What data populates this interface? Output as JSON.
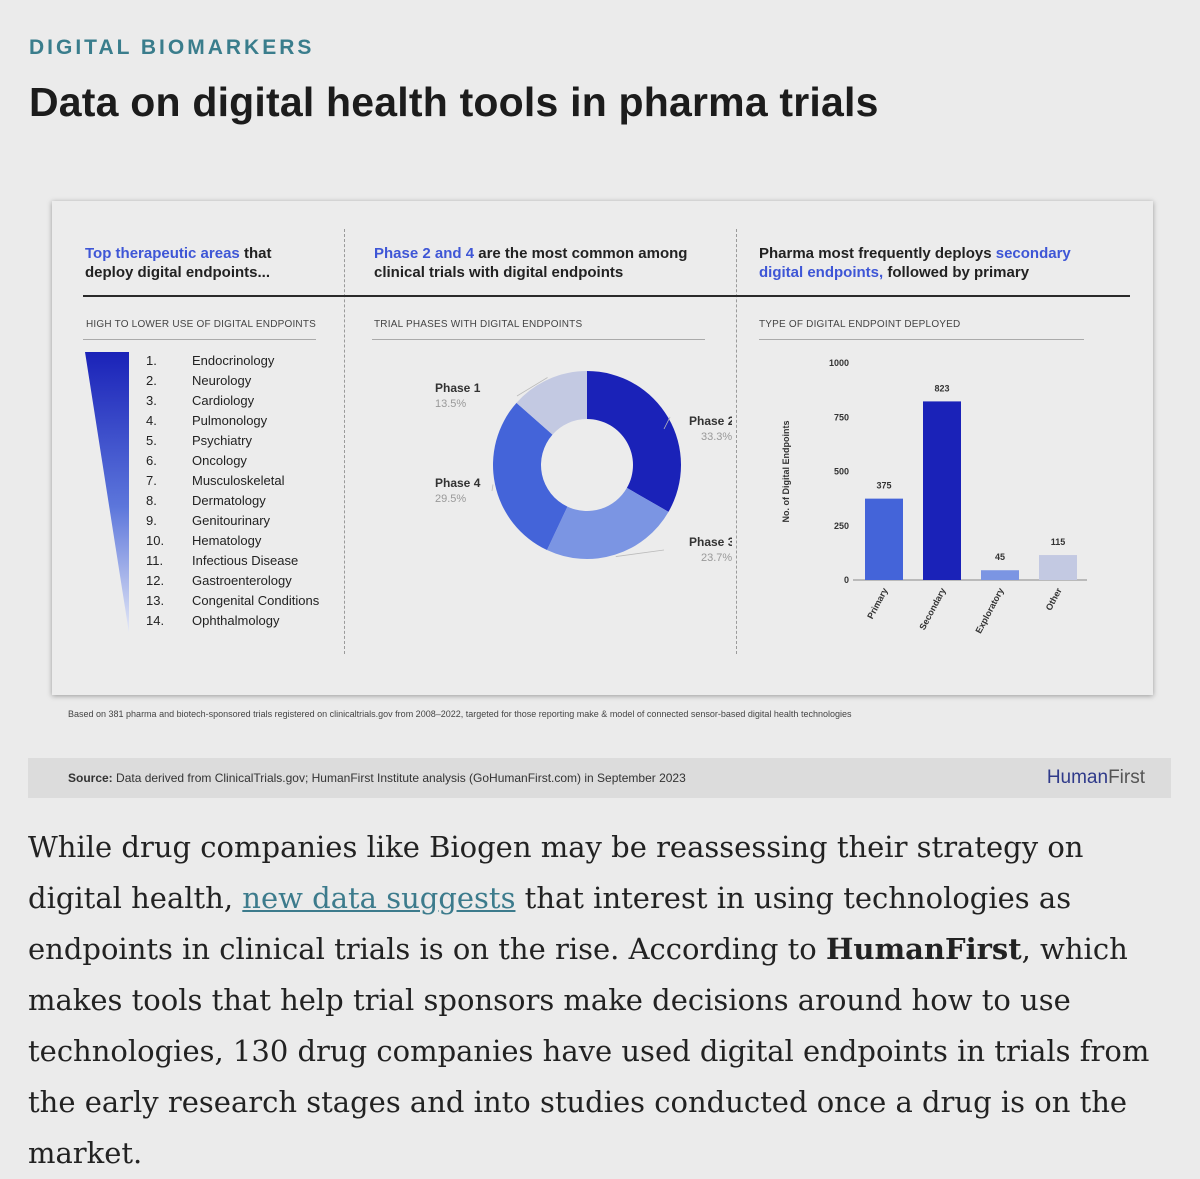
{
  "kicker": "DIGITAL BIOMARKERS",
  "headline": "Data on digital health tools in pharma trials",
  "panels": {
    "left": {
      "title_hl": "Top therapeutic areas",
      "title_rest_1": " that",
      "title_line2": "deploy digital endpoints...",
      "sublabel": "HIGH TO LOWER USE OF DIGITAL ENDPOINTS"
    },
    "middle": {
      "title_hl": "Phase 2 and 4",
      "title_rest_1": " are the most common among",
      "title_line2": "clinical trials with digital endpoints",
      "sublabel": "TRIAL PHASES WITH DIGITAL ENDPOINTS"
    },
    "right": {
      "title_plain_1": "Pharma most frequently deploys ",
      "title_hl_1": "secondary",
      "title_hl_2": "digital endpoints,",
      "title_rest_2": " followed by primary",
      "sublabel": "TYPE OF DIGITAL ENDPOINT DEPLOYED"
    }
  },
  "therapeutic_areas": [
    {
      "rank": "1.",
      "name": "Endocrinology"
    },
    {
      "rank": "2.",
      "name": "Neurology"
    },
    {
      "rank": "3.",
      "name": "Cardiology"
    },
    {
      "rank": "4.",
      "name": "Pulmonology"
    },
    {
      "rank": "5.",
      "name": "Psychiatry"
    },
    {
      "rank": "6.",
      "name": "Oncology"
    },
    {
      "rank": "7.",
      "name": "Musculoskeletal"
    },
    {
      "rank": "8.",
      "name": "Dermatology"
    },
    {
      "rank": "9.",
      "name": "Genitourinary"
    },
    {
      "rank": "10.",
      "name": "Hematology"
    },
    {
      "rank": "11.",
      "name": "Infectious Disease"
    },
    {
      "rank": "12.",
      "name": "Gastroenterology"
    },
    {
      "rank": "13.",
      "name": "Congenital Conditions"
    },
    {
      "rank": "14.",
      "name": "Ophthalmology"
    }
  ],
  "chart_data": [
    {
      "type": "pie",
      "title": "TRIAL PHASES WITH DIGITAL ENDPOINTS",
      "donut": true,
      "slices": [
        {
          "name": "Phase 2",
          "value": 33.3,
          "label": "33.3%",
          "color": "#1a22b8"
        },
        {
          "name": "Phase 3",
          "value": 23.7,
          "label": "23.7%",
          "color": "#7b95e3"
        },
        {
          "name": "Phase 4",
          "value": 29.5,
          "label": "29.5%",
          "color": "#4464d9"
        },
        {
          "name": "Phase 1",
          "value": 13.5,
          "label": "13.5%",
          "color": "#c3c9e2"
        }
      ]
    },
    {
      "type": "bar",
      "title": "TYPE OF DIGITAL ENDPOINT DEPLOYED",
      "categories": [
        "Primary",
        "Secondary",
        "Exploratory",
        "Other"
      ],
      "values": [
        375,
        823,
        45,
        115
      ],
      "value_labels": [
        "375",
        "823",
        "45",
        "115"
      ],
      "colors": [
        "#4464d9",
        "#1a22b8",
        "#7b95e3",
        "#c3c9e2"
      ],
      "ylabel": "No. of Digital Endpoints",
      "ylim": [
        0,
        1000
      ],
      "yticks": [
        "0",
        "250",
        "500",
        "750",
        "1000"
      ]
    }
  ],
  "footnote": "Based on 381 pharma and biotech-sponsored trials registered on clinicaltrials.gov from 2008–2022, targeted for those reporting make & model of connected sensor-based digital health technologies",
  "source": {
    "label": "Source:",
    "text": " Data derived from ClinicalTrials.gov; HumanFirst Institute analysis (GoHumanFirst.com) in September 2023",
    "brand_human": "Human",
    "brand_first": "First"
  },
  "article": {
    "p1": "While drug companies like Biogen may be reassessing their strategy on digital health, ",
    "link": "new data suggests",
    "p2": " that interest in using technologies as endpoints in clinical trials is on the rise. According to ",
    "bold": "HumanFirst",
    "p3": ", which makes tools that help trial sponsors make decisions around how to use technologies, 130 drug companies have used digital endpoints in trials from the early research stages and into studies conducted once a drug is on the market."
  }
}
